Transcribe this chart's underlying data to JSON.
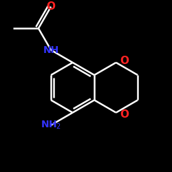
{
  "bg_color": "#000000",
  "bond_color": "#ffffff",
  "o_color": "#ff2222",
  "n_color": "#3333ff",
  "lw": 1.8,
  "figsize": [
    2.5,
    2.5
  ],
  "dpi": 100,
  "xlim": [
    -4.5,
    5.5
  ],
  "ylim": [
    -5.0,
    5.0
  ]
}
